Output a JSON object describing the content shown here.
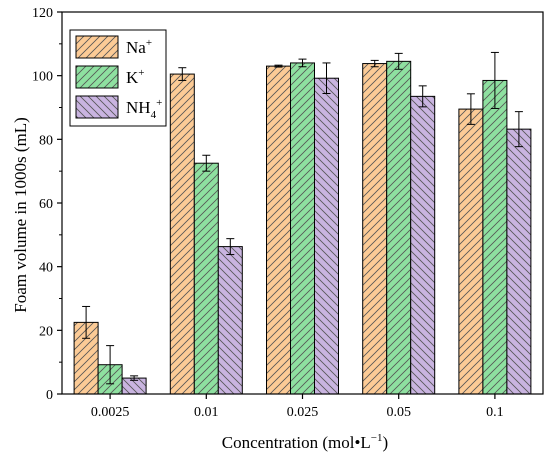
{
  "chart_data": {
    "type": "bar",
    "xlabel": "Concentration (mol•L",
    "xlabel_sup": "−1",
    "xlabel_end": ")",
    "ylabel": "Foam volume in 1000s (mL)",
    "ylim": [
      0,
      120
    ],
    "yticks": [
      0,
      20,
      40,
      60,
      80,
      100,
      120
    ],
    "categories": [
      "0.0025",
      "0.01",
      "0.025",
      "0.05",
      "0.1"
    ],
    "legend_position": "top-left",
    "series": [
      {
        "name": "Na",
        "name_sup": "+",
        "color": "#fccb96",
        "hatch": "diagonal-right",
        "values": [
          22.5,
          100.5,
          103.0,
          103.8,
          89.5
        ],
        "errors": [
          5.0,
          2.0,
          0.3,
          1.0,
          4.8
        ]
      },
      {
        "name": "K",
        "name_sup": "+",
        "color": "#8ee0a0",
        "hatch": "diagonal-right",
        "values": [
          9.2,
          72.5,
          104.0,
          104.5,
          98.5
        ],
        "errors": [
          6.0,
          2.5,
          1.2,
          2.5,
          8.8
        ]
      },
      {
        "name": "NH",
        "name_sub": "4",
        "name_sup": "+",
        "color": "#c9b4e0",
        "hatch": "diagonal-left",
        "values": [
          5.0,
          46.3,
          99.2,
          93.5,
          83.2
        ],
        "errors": [
          0.7,
          2.5,
          4.8,
          3.3,
          5.5
        ]
      }
    ]
  }
}
